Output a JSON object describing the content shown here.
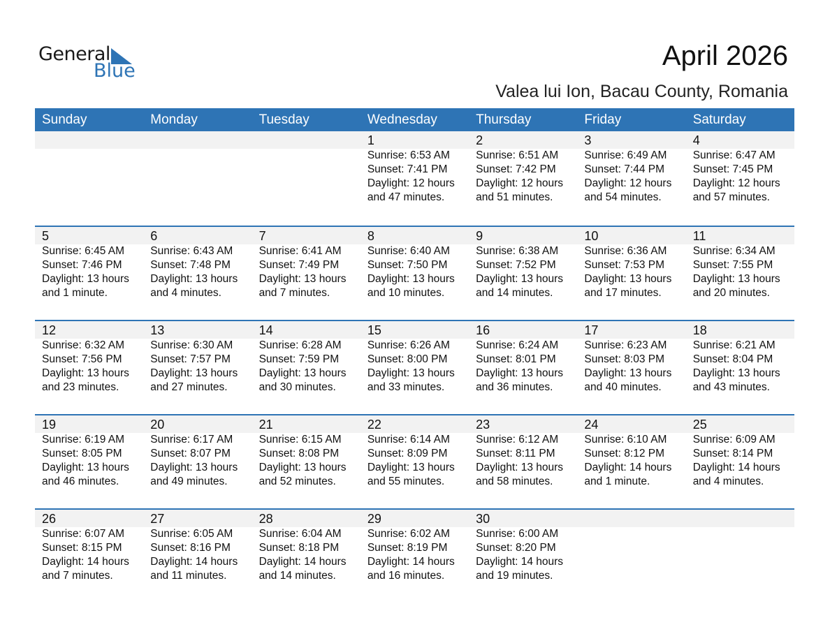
{
  "logo": {
    "word1": "General",
    "word2": "Blue"
  },
  "title": "April 2026",
  "location": "Valea lui Ion, Bacau County, Romania",
  "colors": {
    "accent": "#2e74b5",
    "band": "#f2f2f2"
  },
  "days": [
    "Sunday",
    "Monday",
    "Tuesday",
    "Wednesday",
    "Thursday",
    "Friday",
    "Saturday"
  ],
  "weeks": [
    [
      null,
      null,
      null,
      {
        "day": "1",
        "sunrise": "Sunrise: 6:53 AM",
        "sunset": "Sunset: 7:41 PM",
        "daylight1": "Daylight: 12 hours",
        "daylight2": "and 47 minutes."
      },
      {
        "day": "2",
        "sunrise": "Sunrise: 6:51 AM",
        "sunset": "Sunset: 7:42 PM",
        "daylight1": "Daylight: 12 hours",
        "daylight2": "and 51 minutes."
      },
      {
        "day": "3",
        "sunrise": "Sunrise: 6:49 AM",
        "sunset": "Sunset: 7:44 PM",
        "daylight1": "Daylight: 12 hours",
        "daylight2": "and 54 minutes."
      },
      {
        "day": "4",
        "sunrise": "Sunrise: 6:47 AM",
        "sunset": "Sunset: 7:45 PM",
        "daylight1": "Daylight: 12 hours",
        "daylight2": "and 57 minutes."
      }
    ],
    [
      {
        "day": "5",
        "sunrise": "Sunrise: 6:45 AM",
        "sunset": "Sunset: 7:46 PM",
        "daylight1": "Daylight: 13 hours",
        "daylight2": "and 1 minute."
      },
      {
        "day": "6",
        "sunrise": "Sunrise: 6:43 AM",
        "sunset": "Sunset: 7:48 PM",
        "daylight1": "Daylight: 13 hours",
        "daylight2": "and 4 minutes."
      },
      {
        "day": "7",
        "sunrise": "Sunrise: 6:41 AM",
        "sunset": "Sunset: 7:49 PM",
        "daylight1": "Daylight: 13 hours",
        "daylight2": "and 7 minutes."
      },
      {
        "day": "8",
        "sunrise": "Sunrise: 6:40 AM",
        "sunset": "Sunset: 7:50 PM",
        "daylight1": "Daylight: 13 hours",
        "daylight2": "and 10 minutes."
      },
      {
        "day": "9",
        "sunrise": "Sunrise: 6:38 AM",
        "sunset": "Sunset: 7:52 PM",
        "daylight1": "Daylight: 13 hours",
        "daylight2": "and 14 minutes."
      },
      {
        "day": "10",
        "sunrise": "Sunrise: 6:36 AM",
        "sunset": "Sunset: 7:53 PM",
        "daylight1": "Daylight: 13 hours",
        "daylight2": "and 17 minutes."
      },
      {
        "day": "11",
        "sunrise": "Sunrise: 6:34 AM",
        "sunset": "Sunset: 7:55 PM",
        "daylight1": "Daylight: 13 hours",
        "daylight2": "and 20 minutes."
      }
    ],
    [
      {
        "day": "12",
        "sunrise": "Sunrise: 6:32 AM",
        "sunset": "Sunset: 7:56 PM",
        "daylight1": "Daylight: 13 hours",
        "daylight2": "and 23 minutes."
      },
      {
        "day": "13",
        "sunrise": "Sunrise: 6:30 AM",
        "sunset": "Sunset: 7:57 PM",
        "daylight1": "Daylight: 13 hours",
        "daylight2": "and 27 minutes."
      },
      {
        "day": "14",
        "sunrise": "Sunrise: 6:28 AM",
        "sunset": "Sunset: 7:59 PM",
        "daylight1": "Daylight: 13 hours",
        "daylight2": "and 30 minutes."
      },
      {
        "day": "15",
        "sunrise": "Sunrise: 6:26 AM",
        "sunset": "Sunset: 8:00 PM",
        "daylight1": "Daylight: 13 hours",
        "daylight2": "and 33 minutes."
      },
      {
        "day": "16",
        "sunrise": "Sunrise: 6:24 AM",
        "sunset": "Sunset: 8:01 PM",
        "daylight1": "Daylight: 13 hours",
        "daylight2": "and 36 minutes."
      },
      {
        "day": "17",
        "sunrise": "Sunrise: 6:23 AM",
        "sunset": "Sunset: 8:03 PM",
        "daylight1": "Daylight: 13 hours",
        "daylight2": "and 40 minutes."
      },
      {
        "day": "18",
        "sunrise": "Sunrise: 6:21 AM",
        "sunset": "Sunset: 8:04 PM",
        "daylight1": "Daylight: 13 hours",
        "daylight2": "and 43 minutes."
      }
    ],
    [
      {
        "day": "19",
        "sunrise": "Sunrise: 6:19 AM",
        "sunset": "Sunset: 8:05 PM",
        "daylight1": "Daylight: 13 hours",
        "daylight2": "and 46 minutes."
      },
      {
        "day": "20",
        "sunrise": "Sunrise: 6:17 AM",
        "sunset": "Sunset: 8:07 PM",
        "daylight1": "Daylight: 13 hours",
        "daylight2": "and 49 minutes."
      },
      {
        "day": "21",
        "sunrise": "Sunrise: 6:15 AM",
        "sunset": "Sunset: 8:08 PM",
        "daylight1": "Daylight: 13 hours",
        "daylight2": "and 52 minutes."
      },
      {
        "day": "22",
        "sunrise": "Sunrise: 6:14 AM",
        "sunset": "Sunset: 8:09 PM",
        "daylight1": "Daylight: 13 hours",
        "daylight2": "and 55 minutes."
      },
      {
        "day": "23",
        "sunrise": "Sunrise: 6:12 AM",
        "sunset": "Sunset: 8:11 PM",
        "daylight1": "Daylight: 13 hours",
        "daylight2": "and 58 minutes."
      },
      {
        "day": "24",
        "sunrise": "Sunrise: 6:10 AM",
        "sunset": "Sunset: 8:12 PM",
        "daylight1": "Daylight: 14 hours",
        "daylight2": "and 1 minute."
      },
      {
        "day": "25",
        "sunrise": "Sunrise: 6:09 AM",
        "sunset": "Sunset: 8:14 PM",
        "daylight1": "Daylight: 14 hours",
        "daylight2": "and 4 minutes."
      }
    ],
    [
      {
        "day": "26",
        "sunrise": "Sunrise: 6:07 AM",
        "sunset": "Sunset: 8:15 PM",
        "daylight1": "Daylight: 14 hours",
        "daylight2": "and 7 minutes."
      },
      {
        "day": "27",
        "sunrise": "Sunrise: 6:05 AM",
        "sunset": "Sunset: 8:16 PM",
        "daylight1": "Daylight: 14 hours",
        "daylight2": "and 11 minutes."
      },
      {
        "day": "28",
        "sunrise": "Sunrise: 6:04 AM",
        "sunset": "Sunset: 8:18 PM",
        "daylight1": "Daylight: 14 hours",
        "daylight2": "and 14 minutes."
      },
      {
        "day": "29",
        "sunrise": "Sunrise: 6:02 AM",
        "sunset": "Sunset: 8:19 PM",
        "daylight1": "Daylight: 14 hours",
        "daylight2": "and 16 minutes."
      },
      {
        "day": "30",
        "sunrise": "Sunrise: 6:00 AM",
        "sunset": "Sunset: 8:20 PM",
        "daylight1": "Daylight: 14 hours",
        "daylight2": "and 19 minutes."
      },
      null,
      null
    ]
  ]
}
